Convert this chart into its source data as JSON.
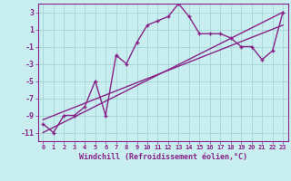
{
  "xlabel": "Windchill (Refroidissement éolien,°C)",
  "bg_color": "#c8eef0",
  "grid_color": "#a8d8d8",
  "line_color": "#882288",
  "x_data": [
    0,
    1,
    2,
    3,
    4,
    5,
    6,
    7,
    8,
    9,
    10,
    11,
    12,
    13,
    14,
    15,
    16,
    17,
    18,
    19,
    20,
    21,
    22,
    23
  ],
  "y_data": [
    -10,
    -11,
    -9,
    -9,
    -8,
    -5,
    -9,
    -2,
    -3,
    -0.5,
    1.5,
    2,
    2.5,
    4,
    2.5,
    0.5,
    0.5,
    0.5,
    0,
    -1,
    -1,
    -2.5,
    -1.5,
    3
  ],
  "trend1_x": [
    0,
    23
  ],
  "trend1_y": [
    -11,
    3
  ],
  "trend2_x": [
    0,
    23
  ],
  "trend2_y": [
    -9.5,
    1.5
  ],
  "xlim": [
    -0.5,
    23.5
  ],
  "ylim": [
    -12,
    4
  ],
  "yticks": [
    -11,
    -9,
    -7,
    -5,
    -3,
    -1,
    1,
    3
  ],
  "xticks": [
    0,
    1,
    2,
    3,
    4,
    5,
    6,
    7,
    8,
    9,
    10,
    11,
    12,
    13,
    14,
    15,
    16,
    17,
    18,
    19,
    20,
    21,
    22,
    23
  ],
  "marker": "+"
}
